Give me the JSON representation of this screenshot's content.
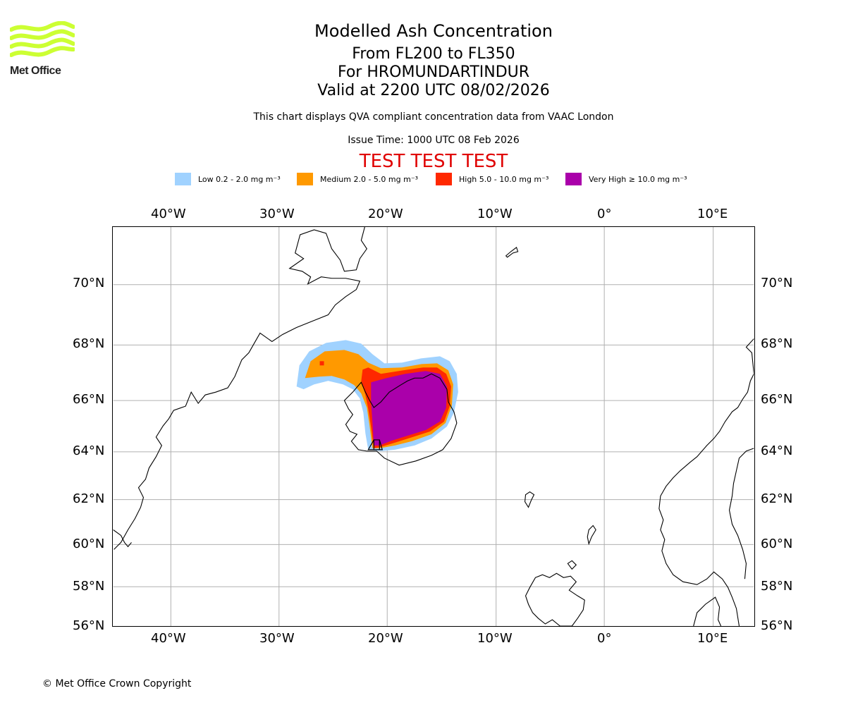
{
  "logo": {
    "text": "Met Office",
    "accent": "#ccff33"
  },
  "header": {
    "title": "Modelled Ash Concentration",
    "level": "From FL200 to FL350",
    "volcano": "For HROMUNDARTINDUR",
    "valid": "Valid at 2200 UTC 08/02/2026",
    "subtitle": "This chart displays QVA compliant concentration data from VAAC London",
    "issue_time": "Issue Time: 1000 UTC 08 Feb 2026",
    "test_banner": "TEST TEST TEST"
  },
  "legend": [
    {
      "label": "Low 0.2 - 2.0 mg m⁻³",
      "color": "#a0d2ff"
    },
    {
      "label": "Medium 2.0 - 5.0 mg m⁻³",
      "color": "#ff9900"
    },
    {
      "label": "High 5.0 - 10.0 mg m⁻³",
      "color": "#ff2800"
    },
    {
      "label": "Very High ≥ 10.0 mg m⁻³",
      "color": "#aa00aa"
    }
  ],
  "map": {
    "lon_labels": [
      "40°W",
      "30°W",
      "20°W",
      "10°W",
      "0°",
      "10°E"
    ],
    "lat_labels": [
      "70°N",
      "68°N",
      "66°N",
      "64°N",
      "62°N",
      "60°N",
      "58°N",
      "56°N"
    ],
    "grid_color": "#b0b0b0",
    "coastline_color": "#000000"
  },
  "footer": {
    "copyright": "© Met Office Crown Copyright"
  }
}
